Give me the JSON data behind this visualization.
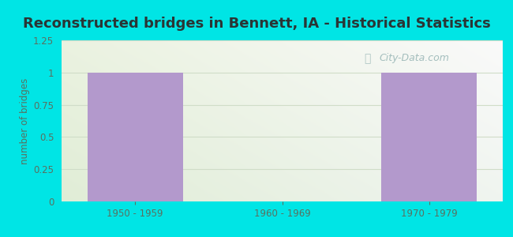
{
  "title": "Reconstructed bridges in Bennett, IA - Historical Statistics",
  "categories": [
    "1950 - 1959",
    "1960 - 1969",
    "1970 - 1979"
  ],
  "values": [
    1,
    0,
    1
  ],
  "bar_color": "#b399cc",
  "background_color": "#00e5e5",
  "plot_bg_color": "#e8f0e0",
  "ylabel": "number of bridges",
  "ylim": [
    0,
    1.25
  ],
  "yticks": [
    0,
    0.25,
    0.5,
    0.75,
    1,
    1.25
  ],
  "title_fontsize": 13,
  "title_color": "#2a3535",
  "axis_label_color": "#5a7060",
  "tick_label_color": "#5a7060",
  "watermark": "City-Data.com",
  "watermark_color": "#90b0b0",
  "grid_color": "#d0ddc8"
}
